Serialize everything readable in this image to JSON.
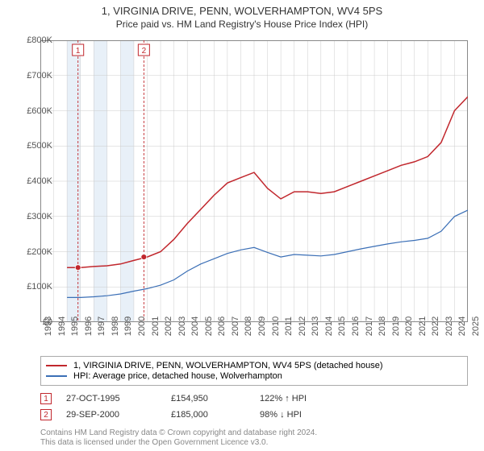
{
  "title_line1": "1, VIRGINIA DRIVE, PENN, WOLVERHAMPTON, WV4 5PS",
  "title_line2": "Price paid vs. HM Land Registry's House Price Index (HPI)",
  "chart": {
    "type": "line",
    "background_color": "#ffffff",
    "plot_border_color": "#888888",
    "grid_color": "#cccccc",
    "shaded_band_color": "#e8f0f8",
    "marker_line_color": "#c1272d",
    "marker_fill": "#c1272d",
    "x_years": [
      1993,
      1994,
      1995,
      1996,
      1997,
      1998,
      1999,
      2000,
      2001,
      2002,
      2003,
      2004,
      2005,
      2006,
      2007,
      2008,
      2009,
      2010,
      2011,
      2012,
      2013,
      2014,
      2015,
      2016,
      2017,
      2018,
      2019,
      2020,
      2021,
      2022,
      2023,
      2024,
      2025
    ],
    "shaded_year_bands": [
      1995,
      1996,
      1997,
      1998,
      1999,
      2000
    ],
    "yaxis": {
      "min": 0,
      "max": 800000,
      "step": 100000,
      "labels": [
        "£0",
        "£100K",
        "£200K",
        "£300K",
        "£400K",
        "£500K",
        "£600K",
        "£700K",
        "£800K"
      ],
      "label_fontsize": 11
    },
    "xaxis": {
      "label_fontsize": 11,
      "rotation_deg": -90
    },
    "series": [
      {
        "name": "property",
        "color": "#c1272d",
        "line_width": 1.5,
        "legend_label": "1, VIRGINIA DRIVE, PENN, WOLVERHAMPTON, WV4 5PS (detached house)",
        "x_start_year": 1995,
        "values_k": [
          155,
          155,
          158,
          160,
          165,
          175,
          185,
          200,
          235,
          280,
          320,
          360,
          395,
          410,
          425,
          380,
          350,
          370,
          370,
          365,
          370,
          385,
          400,
          415,
          430,
          445,
          455,
          470,
          510,
          600,
          640,
          660,
          690
        ]
      },
      {
        "name": "hpi",
        "color": "#3b6fb6",
        "line_width": 1.2,
        "legend_label": "HPI: Average price, detached house, Wolverhampton",
        "x_start_year": 1995,
        "values_k": [
          70,
          70,
          72,
          75,
          80,
          88,
          95,
          105,
          120,
          145,
          165,
          180,
          195,
          205,
          212,
          198,
          185,
          192,
          190,
          188,
          192,
          200,
          208,
          215,
          222,
          228,
          232,
          238,
          258,
          300,
          318,
          325,
          335
        ]
      }
    ],
    "sale_markers": [
      {
        "id": "1",
        "year": 1995.82,
        "price_k": 154.95
      },
      {
        "id": "2",
        "year": 2000.75,
        "price_k": 185.0
      }
    ]
  },
  "legend": {
    "border_color": "#aaaaaa"
  },
  "sales_table": {
    "rows": [
      {
        "marker": "1",
        "date": "27-OCT-1995",
        "price": "£154,950",
        "vs_hpi": "122% ↑ HPI"
      },
      {
        "marker": "2",
        "date": "29-SEP-2000",
        "price": "£185,000",
        "vs_hpi": "98% ↓ HPI"
      }
    ]
  },
  "footer": {
    "line1": "Contains HM Land Registry data © Crown copyright and database right 2024.",
    "line2": "This data is licensed under the Open Government Licence v3.0."
  }
}
